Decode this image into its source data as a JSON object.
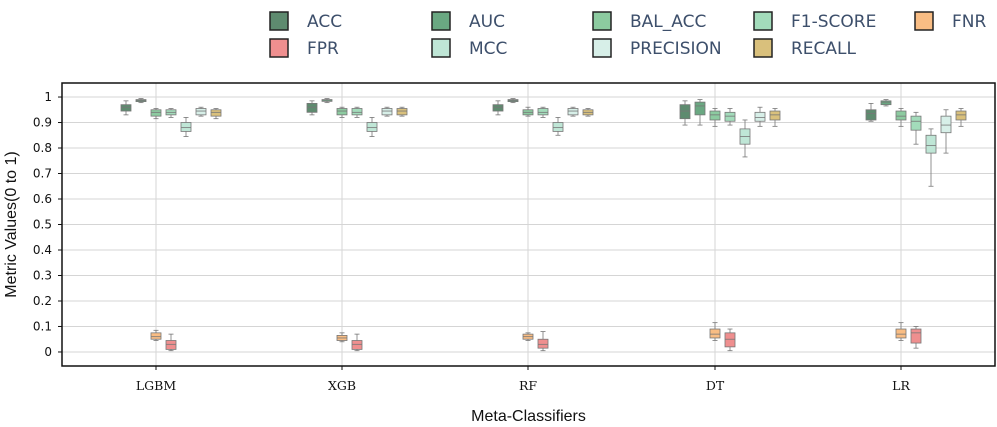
{
  "chart_data": {
    "type": "boxplot",
    "title": "",
    "xlabel": "Meta-Classifiers",
    "ylabel": "Metric Values(0 to 1)",
    "ylim": [
      -0.055,
      1.055
    ],
    "yticks": [
      0,
      0.1,
      0.2,
      0.3,
      0.4,
      0.5,
      0.6,
      0.7,
      0.8,
      0.9,
      1
    ],
    "ytick_labels": [
      "0",
      "0.1",
      "0.2",
      "0.3",
      "0.4",
      "0.5",
      "0.6",
      "0.7",
      "0.8",
      "0.9",
      "1"
    ],
    "categories": [
      "LGBM",
      "XGB",
      "RF",
      "DT",
      "LR"
    ],
    "grid": true,
    "legend_position": "top",
    "series": [
      {
        "name": "ACC",
        "color": "#5e8b6f",
        "stats": [
          {
            "min": 0.93,
            "q1": 0.945,
            "median": 0.96,
            "q3": 0.97,
            "max": 0.985
          },
          {
            "min": 0.93,
            "q1": 0.94,
            "median": 0.96,
            "q3": 0.975,
            "max": 0.985
          },
          {
            "min": 0.93,
            "q1": 0.945,
            "median": 0.96,
            "q3": 0.97,
            "max": 0.985
          },
          {
            "min": 0.89,
            "q1": 0.915,
            "median": 0.945,
            "q3": 0.97,
            "max": 0.985
          },
          {
            "min": 0.905,
            "q1": 0.91,
            "median": 0.935,
            "q3": 0.95,
            "max": 0.975
          }
        ]
      },
      {
        "name": "AUC",
        "color": "#6aa882",
        "stats": [
          {
            "min": 0.978,
            "q1": 0.982,
            "median": 0.986,
            "q3": 0.99,
            "max": 0.994
          },
          {
            "min": 0.978,
            "q1": 0.983,
            "median": 0.988,
            "q3": 0.99,
            "max": 0.994
          },
          {
            "min": 0.978,
            "q1": 0.982,
            "median": 0.986,
            "q3": 0.99,
            "max": 0.994
          },
          {
            "min": 0.89,
            "q1": 0.93,
            "median": 0.965,
            "q3": 0.98,
            "max": 0.99
          },
          {
            "min": 0.965,
            "q1": 0.97,
            "median": 0.98,
            "q3": 0.985,
            "max": 0.99
          }
        ]
      },
      {
        "name": "BAL_ACC",
        "color": "#8ccba0",
        "stats": [
          {
            "min": 0.915,
            "q1": 0.925,
            "median": 0.94,
            "q3": 0.95,
            "max": 0.955
          },
          {
            "min": 0.92,
            "q1": 0.93,
            "median": 0.945,
            "q3": 0.955,
            "max": 0.96
          },
          {
            "min": 0.925,
            "q1": 0.93,
            "median": 0.94,
            "q3": 0.95,
            "max": 0.96
          },
          {
            "min": 0.885,
            "q1": 0.91,
            "median": 0.93,
            "q3": 0.945,
            "max": 0.955
          },
          {
            "min": 0.885,
            "q1": 0.91,
            "median": 0.925,
            "q3": 0.945,
            "max": 0.955
          }
        ]
      },
      {
        "name": "F1-SCORE",
        "color": "#a3dcbb",
        "stats": [
          {
            "min": 0.92,
            "q1": 0.93,
            "median": 0.94,
            "q3": 0.95,
            "max": 0.955
          },
          {
            "min": 0.92,
            "q1": 0.93,
            "median": 0.94,
            "q3": 0.955,
            "max": 0.96
          },
          {
            "min": 0.92,
            "q1": 0.93,
            "median": 0.94,
            "q3": 0.955,
            "max": 0.96
          },
          {
            "min": 0.89,
            "q1": 0.905,
            "median": 0.925,
            "q3": 0.94,
            "max": 0.955
          },
          {
            "min": 0.815,
            "q1": 0.87,
            "median": 0.905,
            "q3": 0.925,
            "max": 0.94
          }
        ]
      },
      {
        "name": "MCC",
        "color": "#bfe6d6",
        "stats": [
          {
            "min": 0.845,
            "q1": 0.865,
            "median": 0.88,
            "q3": 0.9,
            "max": 0.92
          },
          {
            "min": 0.845,
            "q1": 0.865,
            "median": 0.88,
            "q3": 0.9,
            "max": 0.92
          },
          {
            "min": 0.85,
            "q1": 0.865,
            "median": 0.88,
            "q3": 0.9,
            "max": 0.92
          },
          {
            "min": 0.765,
            "q1": 0.815,
            "median": 0.845,
            "q3": 0.875,
            "max": 0.91
          },
          {
            "min": 0.65,
            "q1": 0.78,
            "median": 0.81,
            "q3": 0.85,
            "max": 0.875
          }
        ]
      },
      {
        "name": "PRECISION",
        "color": "#d7efe8",
        "stats": [
          {
            "min": 0.925,
            "q1": 0.93,
            "median": 0.945,
            "q3": 0.955,
            "max": 0.96
          },
          {
            "min": 0.925,
            "q1": 0.93,
            "median": 0.945,
            "q3": 0.955,
            "max": 0.96
          },
          {
            "min": 0.925,
            "q1": 0.93,
            "median": 0.945,
            "q3": 0.955,
            "max": 0.96
          },
          {
            "min": 0.885,
            "q1": 0.905,
            "median": 0.92,
            "q3": 0.94,
            "max": 0.96
          },
          {
            "min": 0.78,
            "q1": 0.86,
            "median": 0.89,
            "q3": 0.925,
            "max": 0.95
          }
        ]
      },
      {
        "name": "RECALL",
        "color": "#d9c07c",
        "stats": [
          {
            "min": 0.915,
            "q1": 0.925,
            "median": 0.94,
            "q3": 0.95,
            "max": 0.955
          },
          {
            "min": 0.925,
            "q1": 0.93,
            "median": 0.945,
            "q3": 0.955,
            "max": 0.96
          },
          {
            "min": 0.925,
            "q1": 0.93,
            "median": 0.94,
            "q3": 0.95,
            "max": 0.955
          },
          {
            "min": 0.885,
            "q1": 0.91,
            "median": 0.93,
            "q3": 0.945,
            "max": 0.955
          },
          {
            "min": 0.885,
            "q1": 0.91,
            "median": 0.93,
            "q3": 0.945,
            "max": 0.955
          }
        ]
      },
      {
        "name": "FNR",
        "color": "#f9bd84",
        "stats": [
          {
            "min": 0.045,
            "q1": 0.05,
            "median": 0.06,
            "q3": 0.075,
            "max": 0.085
          },
          {
            "min": 0.04,
            "q1": 0.045,
            "median": 0.055,
            "q3": 0.065,
            "max": 0.075
          },
          {
            "min": 0.045,
            "q1": 0.05,
            "median": 0.06,
            "q3": 0.07,
            "max": 0.075
          },
          {
            "min": 0.045,
            "q1": 0.055,
            "median": 0.07,
            "q3": 0.09,
            "max": 0.115
          },
          {
            "min": 0.045,
            "q1": 0.055,
            "median": 0.07,
            "q3": 0.09,
            "max": 0.115
          }
        ]
      },
      {
        "name": "FPR",
        "color": "#ef8f8f",
        "stats": [
          {
            "min": 0.005,
            "q1": 0.01,
            "median": 0.03,
            "q3": 0.045,
            "max": 0.07
          },
          {
            "min": 0.005,
            "q1": 0.01,
            "median": 0.03,
            "q3": 0.045,
            "max": 0.07
          },
          {
            "min": 0.005,
            "q1": 0.015,
            "median": 0.03,
            "q3": 0.05,
            "max": 0.08
          },
          {
            "min": 0.005,
            "q1": 0.02,
            "median": 0.05,
            "q3": 0.075,
            "max": 0.09
          },
          {
            "min": 0.015,
            "q1": 0.035,
            "median": 0.075,
            "q3": 0.09,
            "max": 0.1
          }
        ]
      }
    ],
    "legend_order": [
      "ACC",
      "FPR",
      "AUC",
      "MCC",
      "BAL_ACC",
      "PRECISION",
      "F1-SCORE",
      "RECALL",
      "FNR"
    ],
    "draw_order": [
      "ACC",
      "AUC",
      "BAL_ACC",
      "F1-SCORE",
      "MCC",
      "PRECISION",
      "RECALL",
      "FNR",
      "FPR"
    ]
  }
}
